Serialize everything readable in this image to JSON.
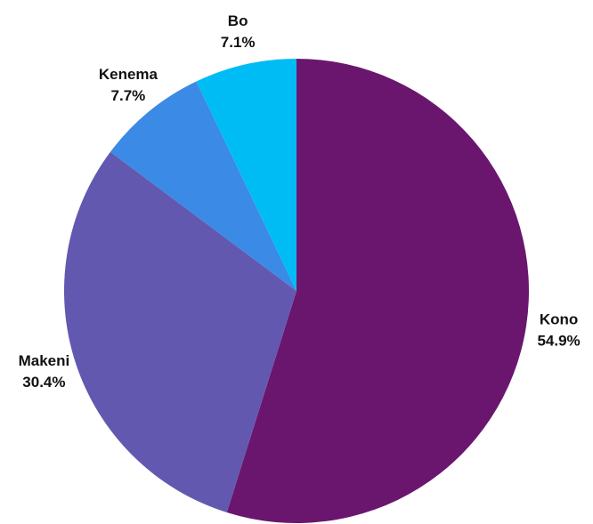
{
  "chart_data": {
    "type": "pie",
    "categories": [
      "Kono",
      "Makeni",
      "Kenema",
      "Bo"
    ],
    "values": [
      54.9,
      30.4,
      7.7,
      7.1
    ],
    "value_labels": [
      "54.9%",
      "30.4%",
      "7.7%",
      "7.1%"
    ],
    "colors": [
      "#6a166e",
      "#6358b0",
      "#3b8ae6",
      "#00bcf5"
    ]
  }
}
